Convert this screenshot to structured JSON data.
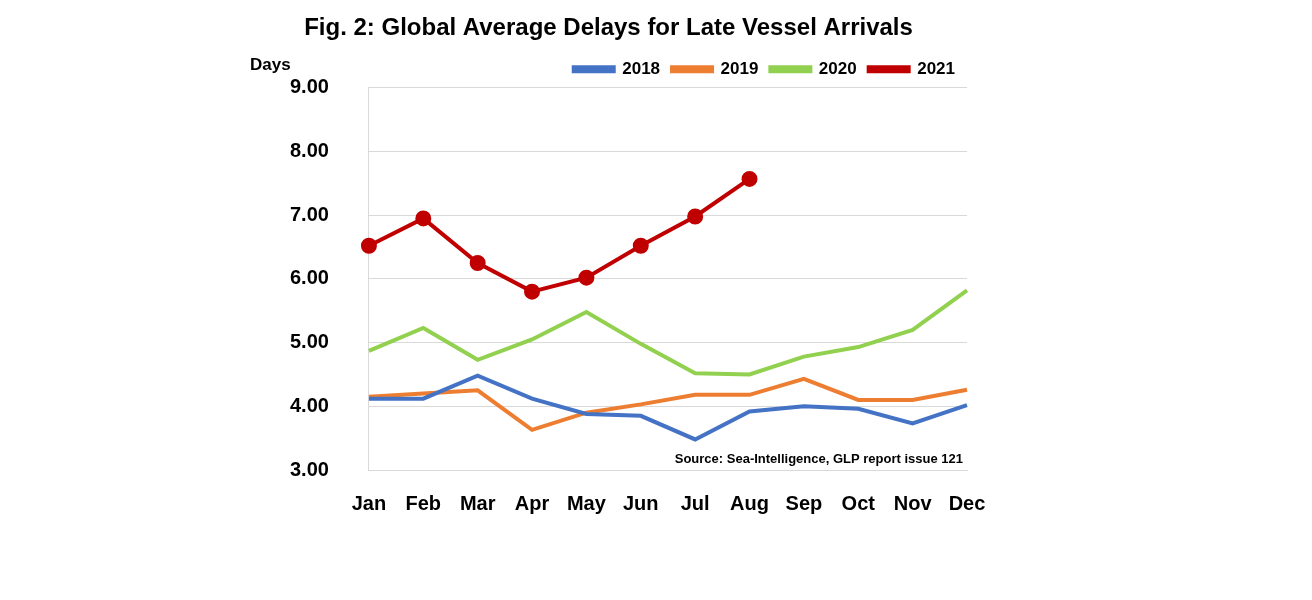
{
  "chart_data": {
    "type": "line",
    "title": "Fig. 2: Global Average Delays for Late Vessel Arrivals",
    "y_label": "Days",
    "annotation": "Source: Sea-Intelligence, GLP report issue 121",
    "categories": [
      "Jan",
      "Feb",
      "Mar",
      "Apr",
      "May",
      "Jun",
      "Jul",
      "Aug",
      "Sep",
      "Oct",
      "Nov",
      "Dec"
    ],
    "series": [
      {
        "name": "2018",
        "color": "#4472c4",
        "marker": "none",
        "line_style": "solid",
        "values": [
          4.12,
          4.12,
          4.48,
          4.12,
          3.88,
          3.85,
          3.48,
          3.92,
          4.0,
          3.96,
          3.73,
          4.02
        ]
      },
      {
        "name": "2019",
        "color": "#ed7d31",
        "marker": "none",
        "line_style": "solid",
        "values": [
          4.15,
          4.2,
          4.25,
          3.63,
          3.9,
          4.03,
          4.18,
          4.18,
          4.43,
          4.1,
          4.1,
          4.26
        ]
      },
      {
        "name": "2020",
        "color": "#92d050",
        "marker": "none",
        "line_style": "solid",
        "values": [
          4.87,
          5.23,
          4.73,
          5.05,
          5.48,
          4.98,
          4.52,
          4.5,
          4.78,
          4.93,
          5.2,
          5.82
        ]
      },
      {
        "name": "2021",
        "color": "#c00000",
        "marker": "circle",
        "line_style": "solid",
        "values": [
          6.52,
          6.95,
          6.25,
          5.8,
          6.02,
          6.52,
          6.98,
          7.57,
          null,
          null,
          null,
          null
        ]
      }
    ],
    "ylim": [
      3,
      9
    ],
    "yticks": [
      {
        "value": 3,
        "label": "3.00"
      },
      {
        "value": 4,
        "label": "4.00"
      },
      {
        "value": 5,
        "label": "5.00"
      },
      {
        "value": 6,
        "label": "6.00"
      },
      {
        "value": 7,
        "label": "7.00"
      },
      {
        "value": 8,
        "label": "8.00"
      },
      {
        "value": 9,
        "label": "9.00"
      }
    ],
    "grid": true,
    "legend": "top"
  }
}
